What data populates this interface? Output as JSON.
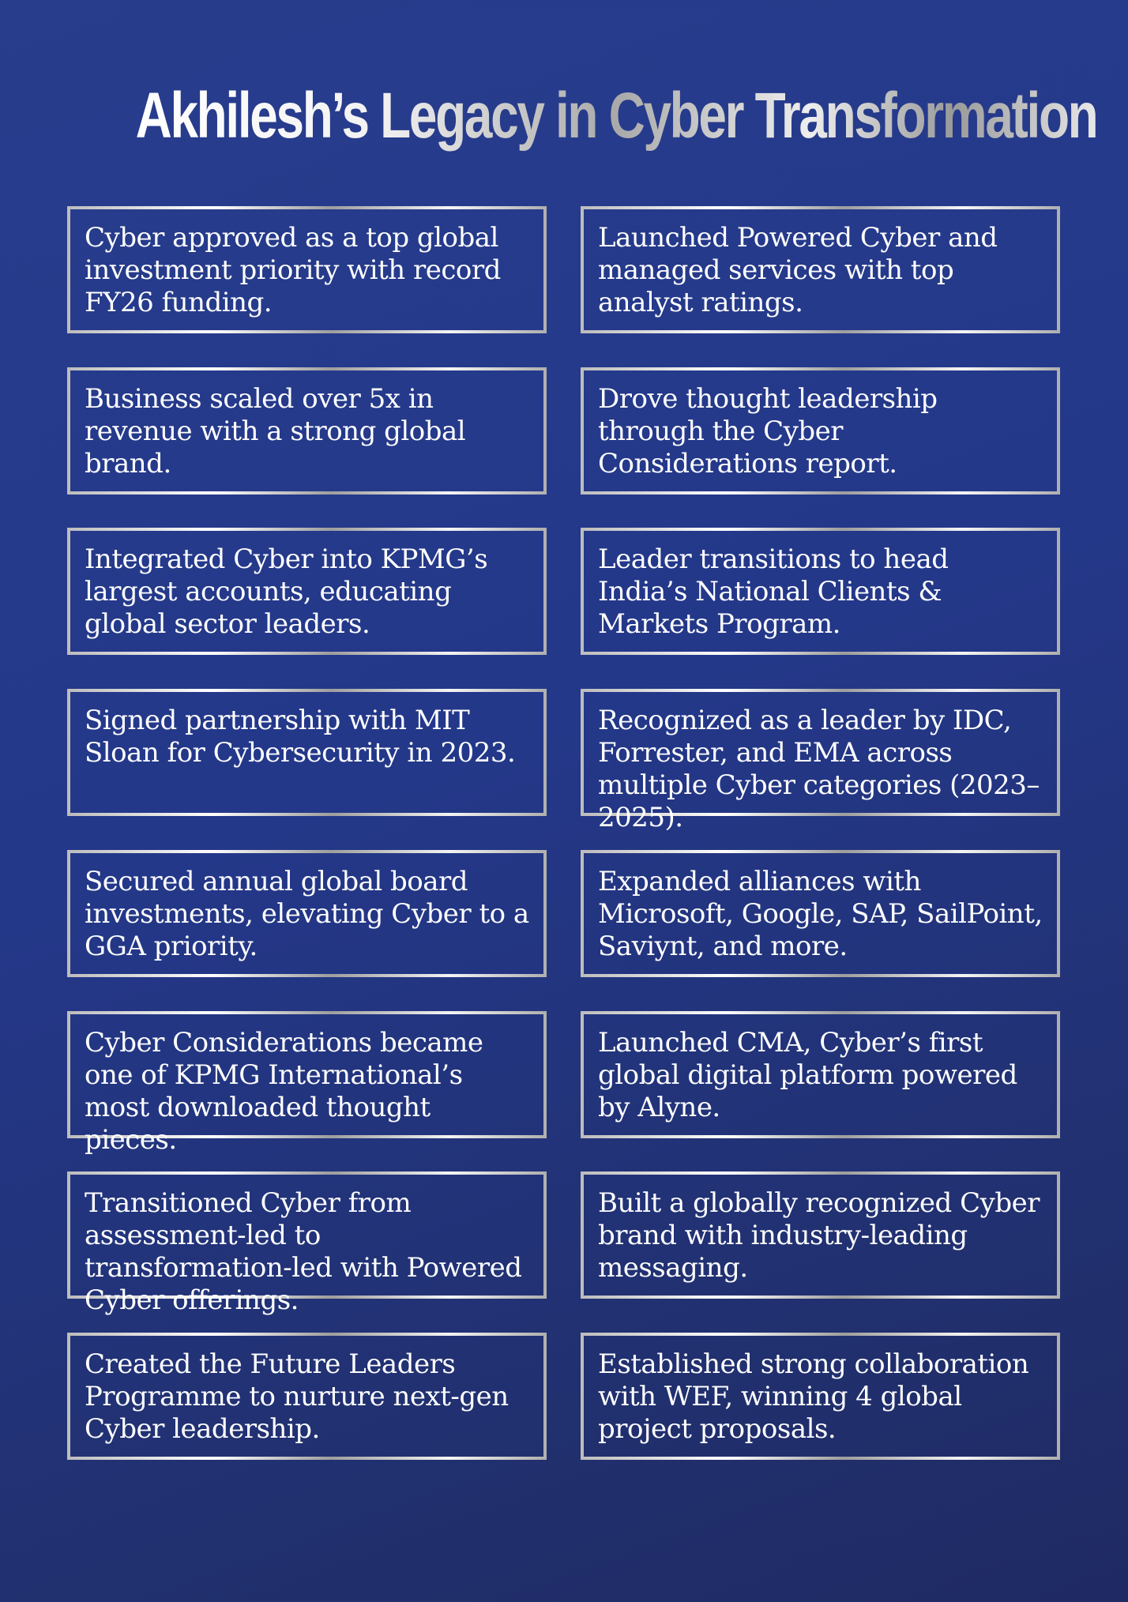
{
  "title": "Akhilesh’s Legacy in Cyber Transformation",
  "cards": [
    "Cyber approved as a top global investment priority with record FY26 funding.",
    "Launched Powered Cyber and managed services with top analyst ratings.",
    "Business scaled over 5x in revenue with a strong global brand.",
    "Drove thought leadership through the Cyber Considerations report.",
    "Integrated Cyber into KPMG’s largest accounts, educating global sector leaders.",
    "Leader transitions to head India’s National Clients & Markets Program.",
    "Signed partnership with MIT Sloan for Cybersecurity in 2023.",
    "Recognized as a leader by IDC, Forrester, and EMA across multiple Cyber categories (2023–2025).",
    "Secured annual global board investments, elevating Cyber to a GGA priority.",
    "Expanded alliances with Microsoft, Google, SAP, SailPoint, Saviynt, and more.",
    "Cyber Considerations became one of KPMG International’s most downloaded thought pieces.",
    "Launched CMA, Cyber’s first global digital platform powered by Alyne.",
    "Transitioned Cyber from assessment-led to transformation-led with Powered Cyber offerings.",
    "Built a globally recognized Cyber brand with industry-leading messaging.",
    "Created the Future Leaders Programme to nurture next-gen Cyber leadership.",
    "Established strong collaboration with WEF, winning 4 global project proposals."
  ]
}
